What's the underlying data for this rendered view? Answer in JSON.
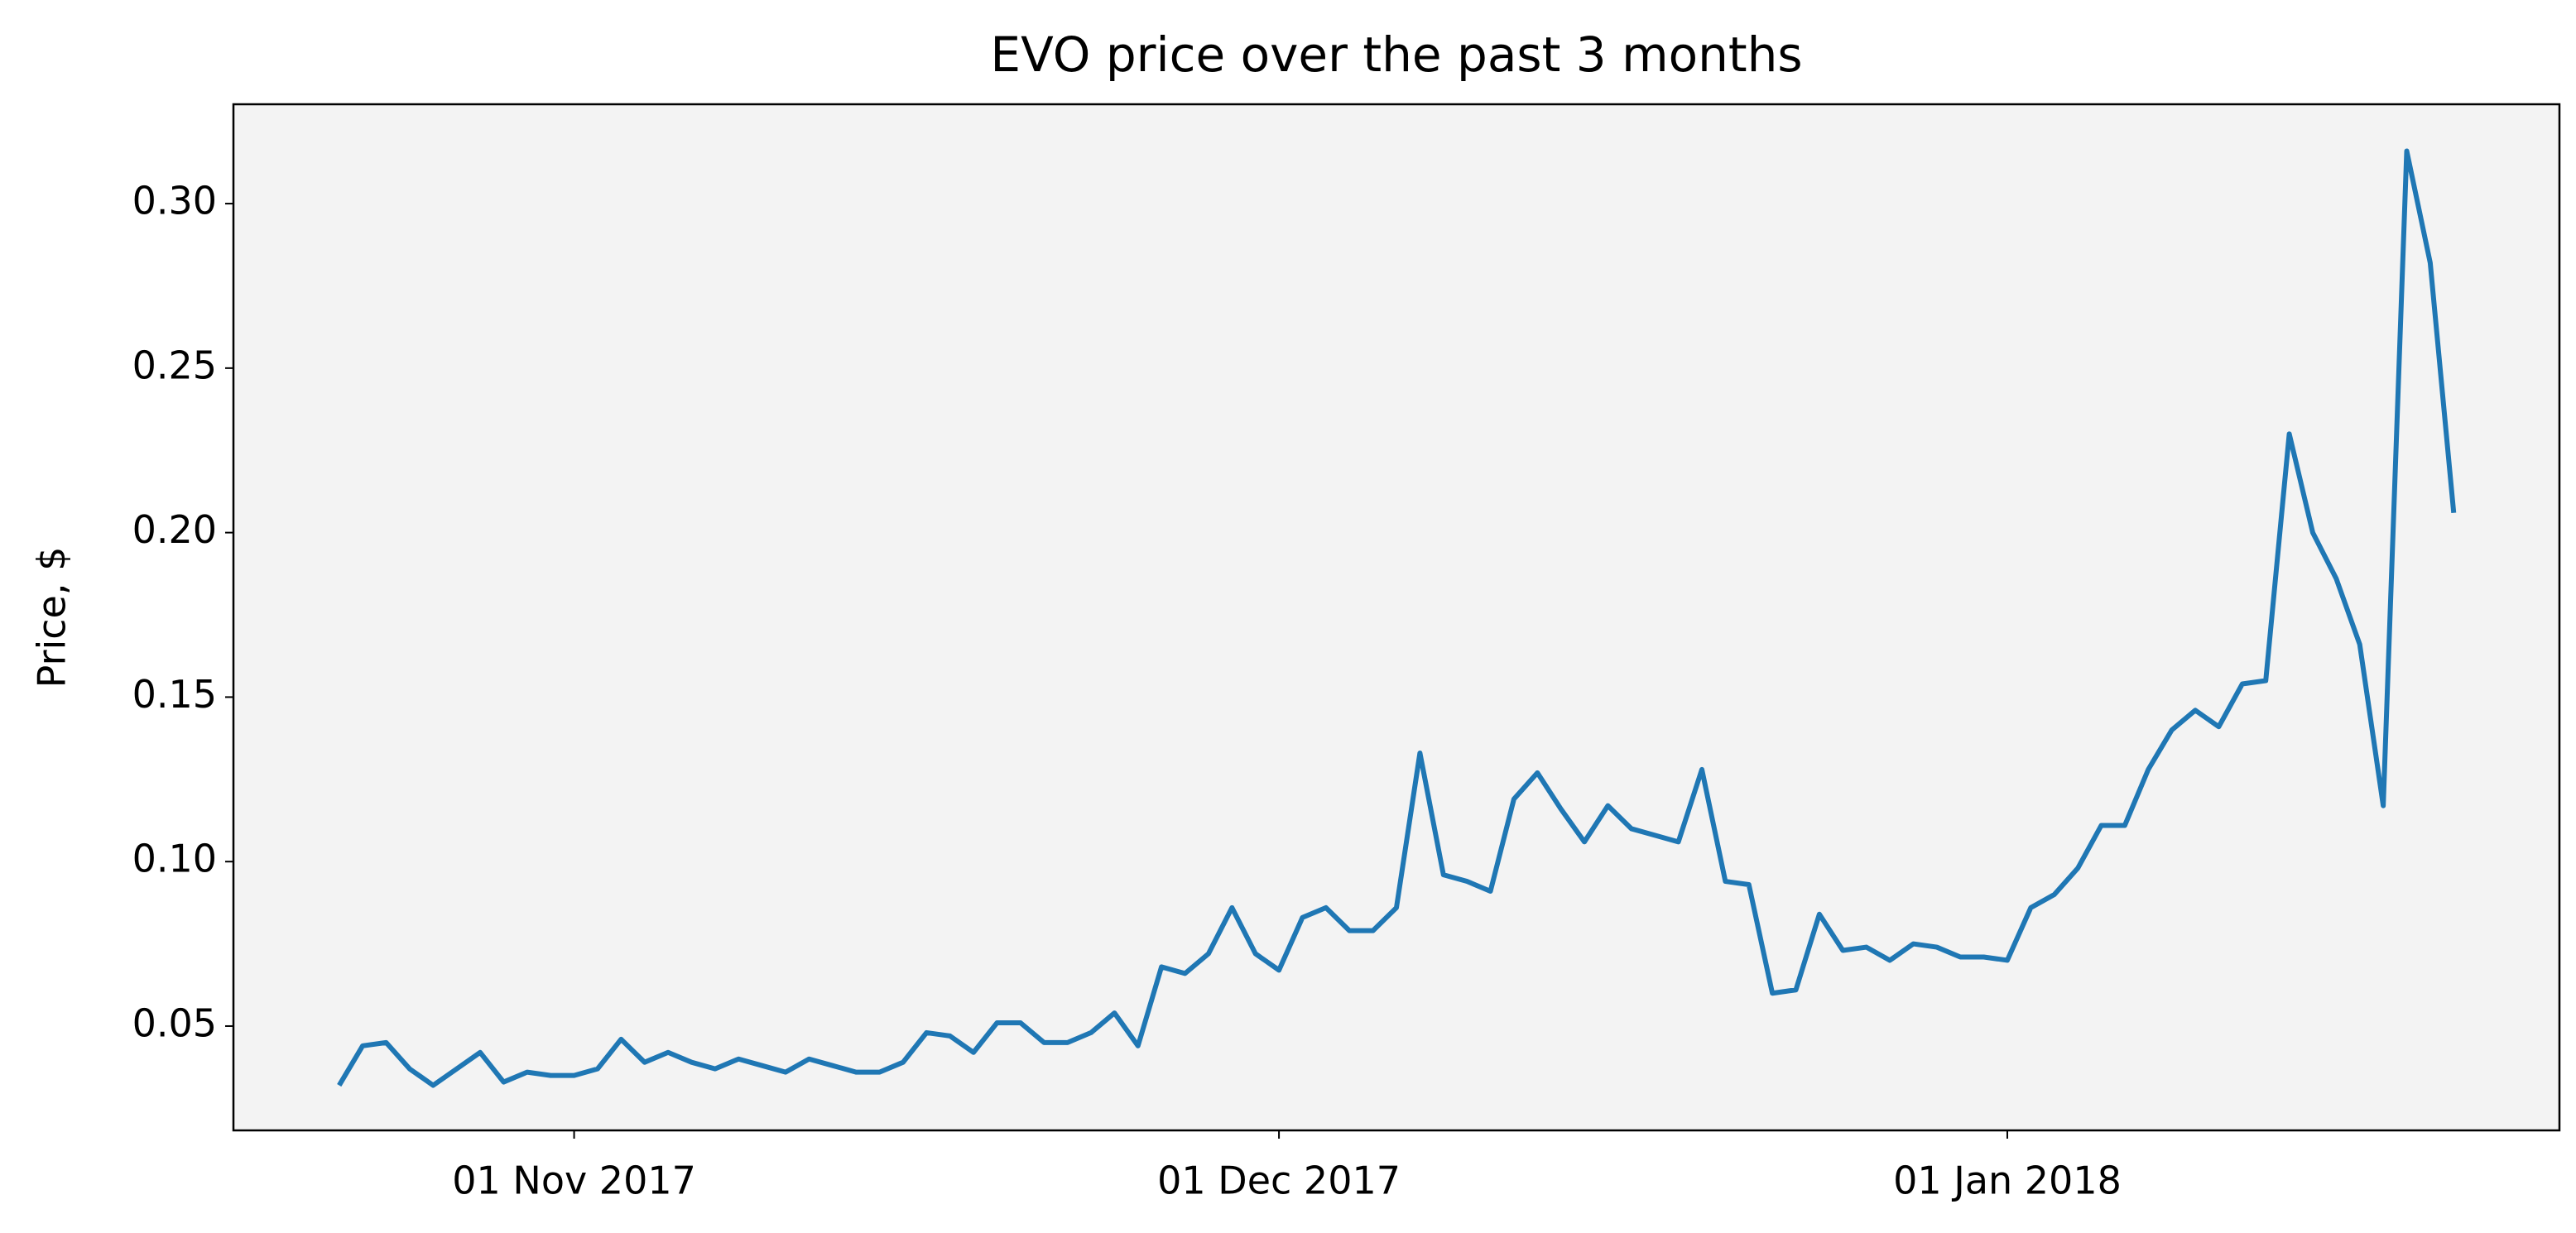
{
  "chart_data": {
    "type": "line",
    "title": "EVO price over the past 3 months",
    "y_label": "Price, $",
    "x": [
      "2017-10-22",
      "2017-10-23",
      "2017-10-24",
      "2017-10-25",
      "2017-10-26",
      "2017-10-27",
      "2017-10-28",
      "2017-10-29",
      "2017-10-30",
      "2017-10-31",
      "2017-11-01",
      "2017-11-02",
      "2017-11-03",
      "2017-11-04",
      "2017-11-05",
      "2017-11-06",
      "2017-11-07",
      "2017-11-08",
      "2017-11-09",
      "2017-11-10",
      "2017-11-11",
      "2017-11-12",
      "2017-11-13",
      "2017-11-14",
      "2017-11-15",
      "2017-11-16",
      "2017-11-17",
      "2017-11-18",
      "2017-11-19",
      "2017-11-20",
      "2017-11-21",
      "2017-11-22",
      "2017-11-23",
      "2017-11-24",
      "2017-11-25",
      "2017-11-26",
      "2017-11-27",
      "2017-11-28",
      "2017-11-29",
      "2017-11-30",
      "2017-12-01",
      "2017-12-02",
      "2017-12-03",
      "2017-12-04",
      "2017-12-05",
      "2017-12-06",
      "2017-12-07",
      "2017-12-08",
      "2017-12-09",
      "2017-12-10",
      "2017-12-11",
      "2017-12-12",
      "2017-12-13",
      "2017-12-14",
      "2017-12-15",
      "2017-12-16",
      "2017-12-17",
      "2017-12-18",
      "2017-12-19",
      "2017-12-20",
      "2017-12-21",
      "2017-12-22",
      "2017-12-23",
      "2017-12-24",
      "2017-12-25",
      "2017-12-26",
      "2017-12-27",
      "2017-12-28",
      "2017-12-29",
      "2017-12-30",
      "2017-12-31",
      "2018-01-01",
      "2018-01-02",
      "2018-01-03",
      "2018-01-04",
      "2018-01-05",
      "2018-01-06",
      "2018-01-07",
      "2018-01-08",
      "2018-01-09",
      "2018-01-10",
      "2018-01-11",
      "2018-01-12",
      "2018-01-13",
      "2018-01-14",
      "2018-01-15",
      "2018-01-16",
      "2018-01-17",
      "2018-01-18",
      "2018-01-19",
      "2018-01-20"
    ],
    "series": [
      {
        "color": "#1f77b4",
        "values": [
          0.032,
          0.044,
          0.045,
          0.037,
          0.032,
          0.037,
          0.042,
          0.033,
          0.036,
          0.035,
          0.035,
          0.037,
          0.046,
          0.039,
          0.042,
          0.039,
          0.037,
          0.04,
          0.038,
          0.036,
          0.04,
          0.038,
          0.036,
          0.036,
          0.039,
          0.048,
          0.047,
          0.042,
          0.051,
          0.051,
          0.045,
          0.045,
          0.048,
          0.054,
          0.044,
          0.068,
          0.066,
          0.072,
          0.086,
          0.072,
          0.067,
          0.083,
          0.086,
          0.079,
          0.079,
          0.086,
          0.133,
          0.096,
          0.094,
          0.091,
          0.119,
          0.127,
          0.116,
          0.106,
          0.117,
          0.11,
          0.108,
          0.106,
          0.128,
          0.094,
          0.093,
          0.06,
          0.061,
          0.084,
          0.073,
          0.074,
          0.07,
          0.075,
          0.074,
          0.071,
          0.071,
          0.07,
          0.086,
          0.09,
          0.098,
          0.111,
          0.111,
          0.128,
          0.14,
          0.146,
          0.141,
          0.154,
          0.155,
          0.23,
          0.2,
          0.186,
          0.166,
          0.117,
          0.316,
          0.282,
          0.206
        ]
      }
    ],
    "xlim": [
      "2017-10-17T12:00",
      "2018-01-24T12:00"
    ],
    "xticks": [
      {
        "value": "2017-11-01",
        "label": "01 Nov 2017"
      },
      {
        "value": "2017-12-01",
        "label": "01 Dec 2017"
      },
      {
        "value": "2018-01-01",
        "label": "01 Jan 2018"
      }
    ],
    "ylim": [
      0.0183,
      0.3302
    ],
    "yticks": [
      0.05,
      {
        "value": 0.1,
        "label": "0.10"
      },
      0.15,
      {
        "value": 0.2,
        "label": "0.20"
      },
      0.25,
      {
        "value": 0.3,
        "label": "0.30"
      }
    ],
    "background": "#f3f3f3"
  }
}
